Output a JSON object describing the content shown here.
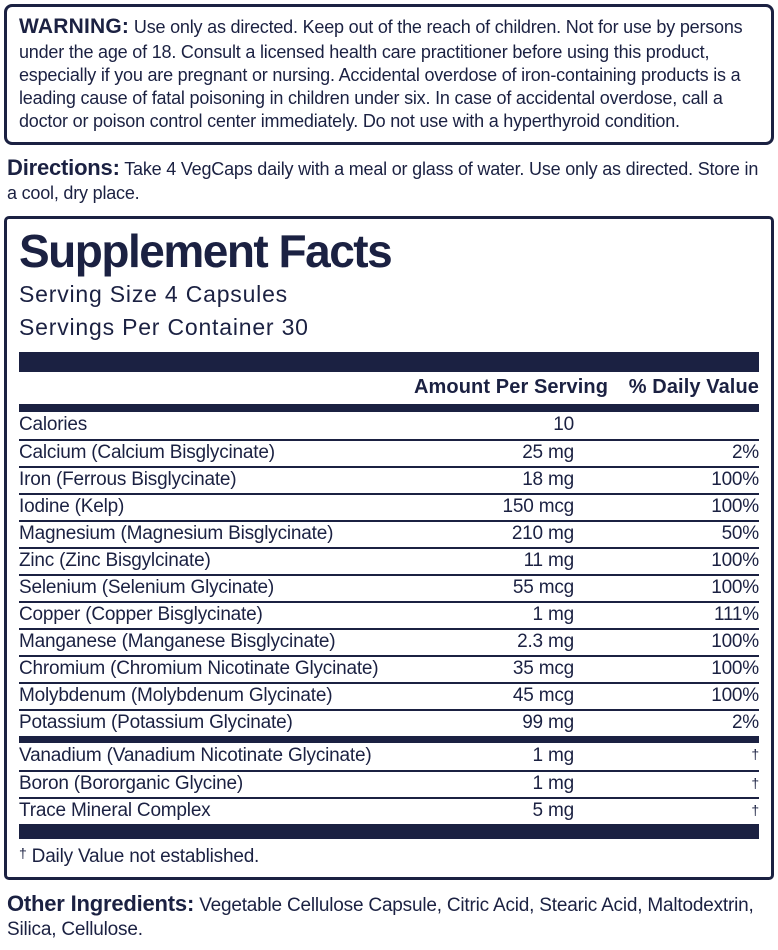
{
  "colors": {
    "ink": "#1b2142",
    "background": "#ffffff"
  },
  "warning": {
    "label": "WARNING:",
    "text": "Use only as directed. Keep out of the reach of children. Not for use by persons under the age of 18. Consult a licensed health care practitioner before using this product, especially if you are pregnant or nursing. Accidental overdose of iron-containing products is a leading cause of fatal poisoning in children under six. In case of accidental overdose, call a doctor or poison control center immediately. Do not use with a hyperthyroid condition."
  },
  "directions": {
    "label": "Directions:",
    "text": "Take 4 VegCaps daily with a meal or glass of water. Use only as directed. Store in a cool, dry place."
  },
  "supplement_facts": {
    "title": "Supplement Facts",
    "serving_size": "Serving Size 4 Capsules",
    "servings_per_container": "Servings Per Container 30",
    "col_amount": "Amount Per Serving",
    "col_dv": "% Daily Value",
    "rows": [
      {
        "name": "Calories",
        "amount": "10",
        "dv": ""
      },
      {
        "name": "Calcium (Calcium Bisglycinate)",
        "amount": "25 mg",
        "dv": "2%"
      },
      {
        "name": "Iron (Ferrous Bisglycinate)",
        "amount": "18 mg",
        "dv": "100%"
      },
      {
        "name": "Iodine (Kelp)",
        "amount": "150 mcg",
        "dv": "100%"
      },
      {
        "name": "Magnesium (Magnesium Bisglycinate)",
        "amount": "210 mg",
        "dv": "50%"
      },
      {
        "name": "Zinc (Zinc Bisgylcinate)",
        "amount": "11 mg",
        "dv": "100%"
      },
      {
        "name": "Selenium (Selenium Glycinate)",
        "amount": "55 mcg",
        "dv": "100%"
      },
      {
        "name": "Copper (Copper Bisglycinate)",
        "amount": "1 mg",
        "dv": "111%"
      },
      {
        "name": "Manganese (Manganese Bisglycinate)",
        "amount": "2.3 mg",
        "dv": "100%"
      },
      {
        "name": "Chromium (Chromium Nicotinate Glycinate)",
        "amount": "35 mcg",
        "dv": "100%"
      },
      {
        "name": "Molybdenum (Molybdenum Glycinate)",
        "amount": "45 mcg",
        "dv": "100%"
      },
      {
        "name": "Potassium (Potassium Glycinate)",
        "amount": "99 mg",
        "dv": "2%"
      }
    ],
    "rows_no_dv": [
      {
        "name": "Vanadium (Vanadium Nicotinate Glycinate)",
        "amount": "1 mg",
        "dv": "†"
      },
      {
        "name": "Boron (Bororganic Glycine)",
        "amount": "1 mg",
        "dv": "†"
      },
      {
        "name": "Trace Mineral Complex",
        "amount": "5 mg",
        "dv": "†"
      }
    ],
    "footnote": {
      "dagger": "†",
      "text": " Daily Value not established."
    }
  },
  "other_ingredients": {
    "label": "Other Ingredients:",
    "text": "Vegetable Cellulose Capsule, Citric Acid, Stearic Acid, Maltodextrin, Silica, Cellulose."
  }
}
